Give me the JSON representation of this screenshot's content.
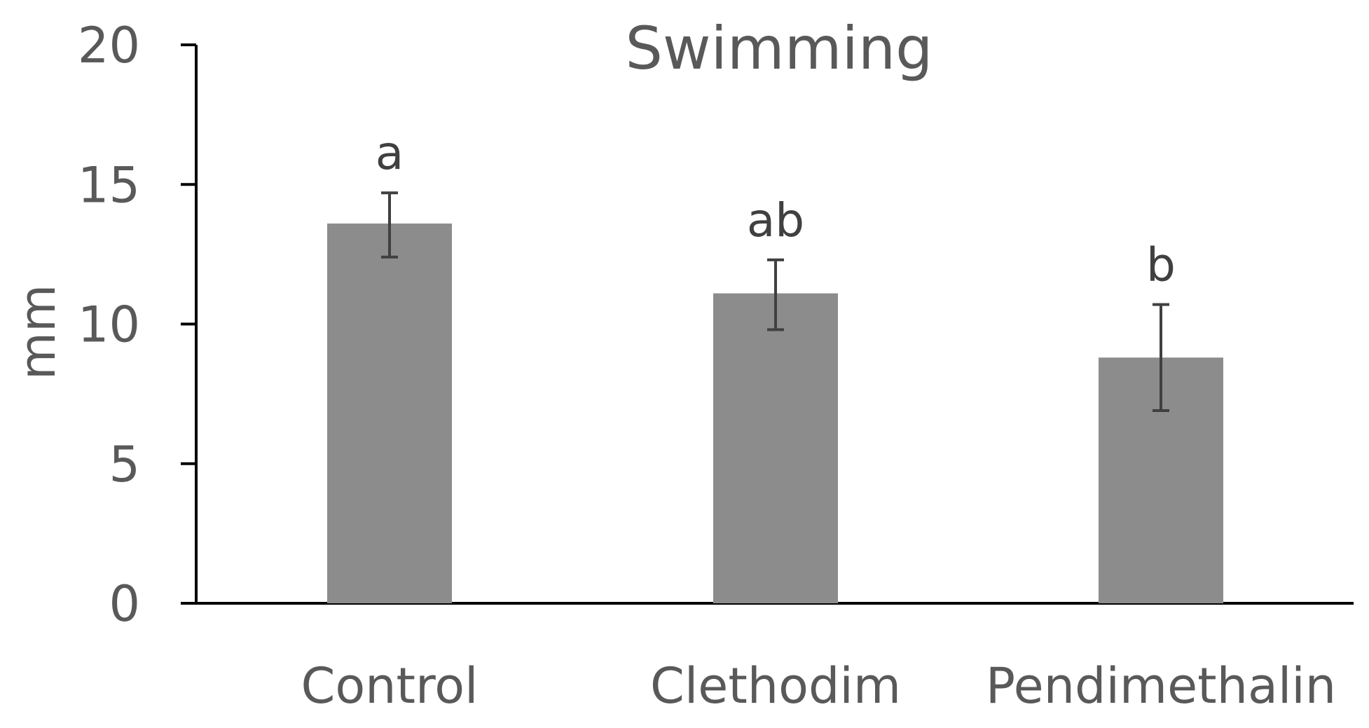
{
  "chart_data": {
    "type": "bar",
    "title": "Swimming",
    "xlabel": "",
    "ylabel": "mm",
    "ylim": [
      0,
      20
    ],
    "yticks": [
      0,
      5,
      10,
      15,
      20
    ],
    "categories": [
      "Control",
      "Clethodim",
      "Pendimethalin"
    ],
    "series": [
      {
        "name": "Swimming",
        "values": [
          13.6,
          11.1,
          8.8
        ],
        "error_low": [
          12.4,
          9.8,
          6.9
        ],
        "error_high": [
          14.7,
          12.3,
          10.7
        ]
      }
    ],
    "annotations": [
      "a",
      "ab",
      "b"
    ],
    "colors": {
      "bar": "#8c8c8c",
      "axis": "#000000",
      "text": "#595959",
      "annotation": "#404040",
      "error": "#404040"
    }
  }
}
